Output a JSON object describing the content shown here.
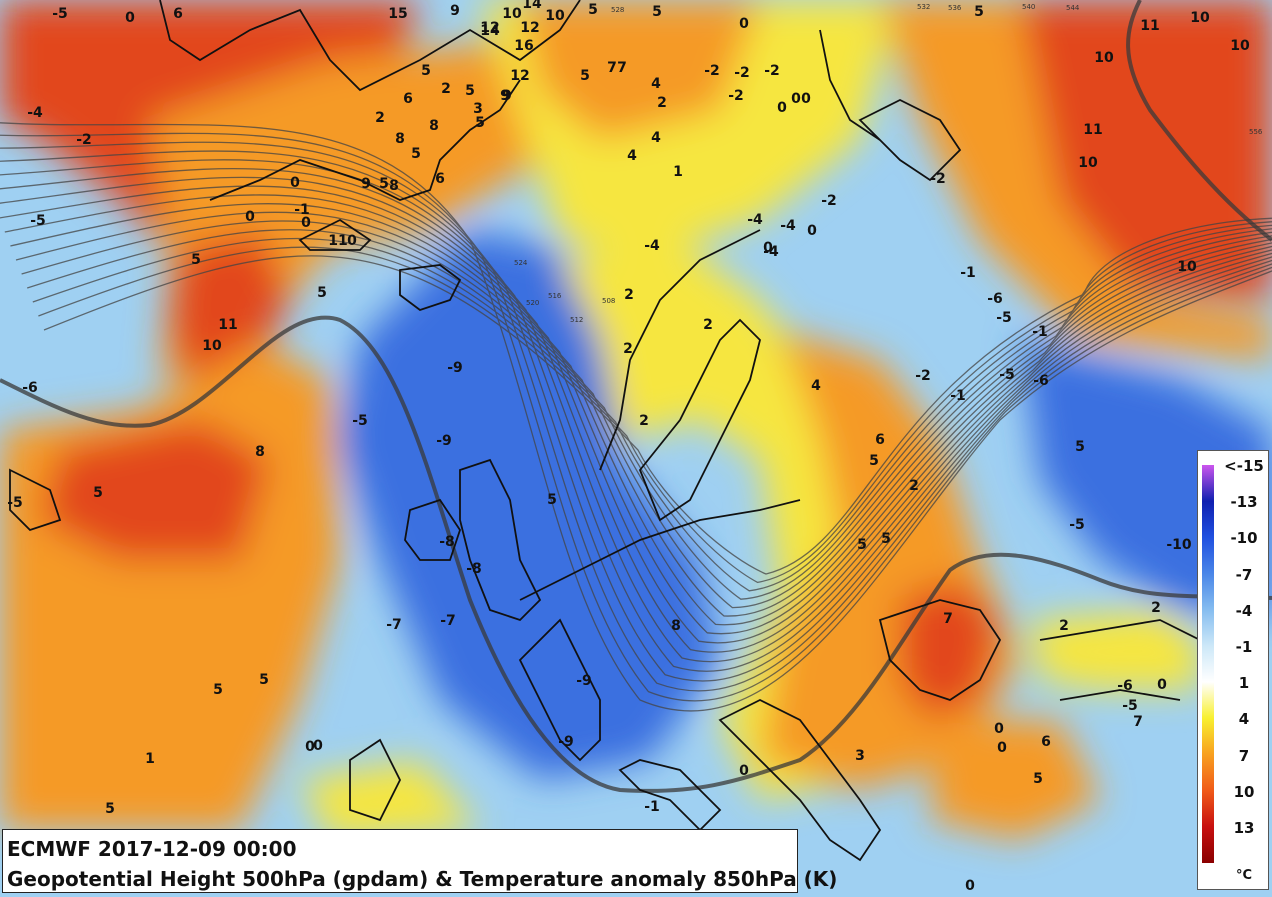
{
  "caption": {
    "line1": "ECMWF 2017-12-09 00:00",
    "line2": "Geopotential Height 500hPa (gpdam) & Temperature anomaly 850hPa (K)"
  },
  "legend": {
    "ticks": [
      "<-15",
      "-13",
      "-10",
      "-7",
      "-4",
      "-1",
      "1",
      "4",
      "7",
      "10",
      "13"
    ],
    "unit": "°C",
    "colors": [
      "#cc55ee",
      "#1020b0",
      "#2050e0",
      "#4a86e8",
      "#86bdf0",
      "#cde8f8",
      "#ffffff",
      "#f8f030",
      "#f8a020",
      "#f05a18",
      "#c81010",
      "#8a0000"
    ]
  },
  "colors": {
    "ocean_cold": "#3a6fe0",
    "cold_light": "#9fd0f2",
    "neutral": "#ffffff",
    "warm_yellow": "#f6e640",
    "warm_orange": "#f59a28",
    "hot_red": "#e2461a",
    "coast": "#111111",
    "contour": "#444444"
  },
  "map_labels": [
    "-5",
    "6",
    "0",
    "15",
    "9",
    "10",
    "14",
    "10",
    "5",
    "5",
    "0",
    "5",
    "10",
    "11",
    "10",
    "14",
    "12",
    "16",
    "12",
    "5",
    "7",
    "7",
    "-2",
    "-2",
    "-2",
    "4",
    "2",
    "-2",
    "0",
    "0",
    "0",
    "12",
    "9",
    "-4",
    "-2",
    "5",
    "2",
    "5",
    "6",
    "3",
    "5",
    "9",
    "2",
    "8",
    "4",
    "8",
    "5",
    "4",
    "1",
    "9",
    "5",
    "8",
    "6",
    "11",
    "-2",
    "10",
    "11",
    "10",
    "-5",
    "0",
    "0",
    "-1",
    "0",
    "0",
    "-4",
    "-4",
    "-4",
    "0",
    "-4",
    "-2",
    "10",
    "5",
    "2",
    "5",
    "-1",
    "0",
    "-6",
    "-5",
    "-1",
    "11",
    "10",
    "2",
    "2",
    "-9",
    "-5",
    "-9",
    "2",
    "4",
    "-2",
    "-1",
    "-5",
    "-6",
    "-6",
    "5",
    "8",
    "6",
    "5",
    "2",
    "5",
    "-5",
    "5",
    "-8",
    "-8",
    "-5",
    "5",
    "5",
    "-10",
    "-7",
    "-7",
    "8",
    "7",
    "2",
    "2",
    "5",
    "5",
    "-9",
    "-9",
    "0",
    "0",
    "-6",
    "-5",
    "7",
    "1",
    "-1",
    "0",
    "0",
    "6",
    "3",
    "5",
    "5",
    "0",
    "0",
    "0"
  ],
  "height_labels": [
    "508",
    "512",
    "516",
    "520",
    "524",
    "528",
    "532",
    "536",
    "540",
    "544",
    "556"
  ]
}
